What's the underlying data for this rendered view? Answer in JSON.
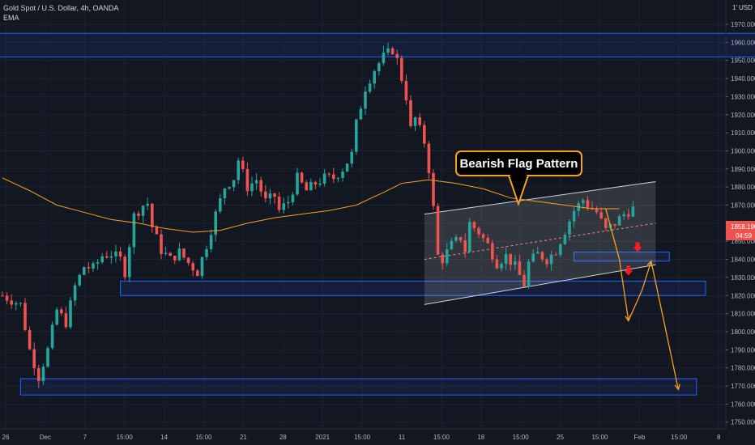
{
  "header": {
    "symbol_line": "Gold Spot / U.S. Dollar, 4h, OANDA",
    "indicator": "EMA",
    "currency": "USD"
  },
  "annotation": {
    "label": "Bearish Flag Pattern"
  },
  "price_label": {
    "price": "1858.190",
    "countdown": "04:59"
  },
  "colors": {
    "background": "#131722",
    "up": "#26a69a",
    "down": "#ef5350",
    "ema": "#f7a21b",
    "zone_border": "#2962ff",
    "arrow": "#f7a21b",
    "red_marker": "#ff1d1d"
  },
  "chart_data": {
    "type": "candlestick",
    "title": "Gold Spot / U.S. Dollar, 4h, OANDA",
    "ylim": [
      1745,
      1985
    ],
    "y_ticks": [
      1750,
      1760,
      1770,
      1780,
      1790,
      1800,
      1810,
      1820,
      1830,
      1840,
      1850,
      1860,
      1870,
      1880,
      1890,
      1900,
      1910,
      1920,
      1930,
      1940,
      1950,
      1960,
      1970
    ],
    "x_tick_labels": [
      "26",
      "Dec",
      "7",
      "15:00",
      "14",
      "15:00",
      "21",
      "28",
      "2021",
      "15:00",
      "11",
      "15:00",
      "18",
      "15:00",
      "25",
      "15:00",
      "Feb",
      "15:00",
      "8"
    ],
    "close_path": [
      [
        0,
        1820
      ],
      [
        4,
        1815
      ],
      [
        6,
        1790
      ],
      [
        8,
        1775
      ],
      [
        10,
        1790
      ],
      [
        12,
        1812
      ],
      [
        14,
        1805
      ],
      [
        16,
        1825
      ],
      [
        18,
        1836
      ],
      [
        20,
        1835
      ],
      [
        22,
        1842
      ],
      [
        24,
        1843
      ],
      [
        26,
        1840
      ],
      [
        27,
        1833
      ],
      [
        29,
        1864
      ],
      [
        31,
        1870
      ],
      [
        32,
        1871
      ],
      [
        33,
        1858
      ],
      [
        35,
        1845
      ],
      [
        37,
        1840
      ],
      [
        39,
        1844
      ],
      [
        41,
        1838
      ],
      [
        43,
        1833
      ],
      [
        45,
        1848
      ],
      [
        47,
        1865
      ],
      [
        49,
        1880
      ],
      [
        51,
        1885
      ],
      [
        52,
        1895
      ],
      [
        54,
        1880
      ],
      [
        56,
        1884
      ],
      [
        58,
        1872
      ],
      [
        60,
        1875
      ],
      [
        61,
        1867
      ],
      [
        63,
        1872
      ],
      [
        65,
        1885
      ],
      [
        67,
        1878
      ],
      [
        69,
        1882
      ],
      [
        71,
        1885
      ],
      [
        73,
        1885
      ],
      [
        75,
        1890
      ],
      [
        77,
        1898
      ],
      [
        78,
        1915
      ],
      [
        80,
        1935
      ],
      [
        82,
        1945
      ],
      [
        84,
        1952
      ],
      [
        86,
        1956
      ],
      [
        87,
        1950
      ],
      [
        89,
        1930
      ],
      [
        90,
        1912
      ],
      [
        91,
        1918
      ],
      [
        93,
        1905
      ],
      [
        94,
        1890
      ],
      [
        95,
        1868
      ],
      [
        96,
        1842
      ],
      [
        97,
        1840
      ],
      [
        99,
        1848
      ],
      [
        101,
        1852
      ],
      [
        102,
        1845
      ],
      [
        103,
        1860
      ],
      [
        105,
        1855
      ],
      [
        107,
        1848
      ],
      [
        109,
        1838
      ],
      [
        111,
        1842
      ],
      [
        113,
        1836
      ],
      [
        115,
        1826
      ],
      [
        116,
        1838
      ],
      [
        118,
        1843
      ],
      [
        120,
        1840
      ],
      [
        122,
        1845
      ],
      [
        124,
        1856
      ],
      [
        126,
        1867
      ],
      [
        128,
        1873
      ],
      [
        129,
        1870
      ],
      [
        131,
        1866
      ],
      [
        133,
        1856
      ],
      [
        135,
        1860
      ],
      [
        137,
        1865
      ],
      [
        139,
        1868
      ]
    ],
    "ema_path": [
      [
        0,
        1885
      ],
      [
        6,
        1878
      ],
      [
        12,
        1870
      ],
      [
        18,
        1866
      ],
      [
        24,
        1862
      ],
      [
        30,
        1860
      ],
      [
        36,
        1857
      ],
      [
        42,
        1855
      ],
      [
        48,
        1856
      ],
      [
        54,
        1860
      ],
      [
        60,
        1863
      ],
      [
        66,
        1865
      ],
      [
        72,
        1867
      ],
      [
        78,
        1870
      ],
      [
        84,
        1877
      ],
      [
        88,
        1882
      ],
      [
        94,
        1884
      ],
      [
        100,
        1882
      ],
      [
        106,
        1879
      ],
      [
        112,
        1874
      ],
      [
        118,
        1872
      ],
      [
        124,
        1870
      ],
      [
        130,
        1868
      ],
      [
        136,
        1868
      ]
    ],
    "zones": [
      {
        "x0": -2,
        "x1": 185,
        "y0": 1952,
        "y1": 1965
      },
      {
        "x0": 26,
        "x1": 155,
        "y0": 1820,
        "y1": 1828
      },
      {
        "x0": 4,
        "x1": 153,
        "y0": 1765,
        "y1": 1774
      },
      {
        "x0": 126,
        "x1": 147,
        "y0": 1839,
        "y1": 1844
      }
    ],
    "flag_channel": {
      "upper": [
        [
          93,
          1865
        ],
        [
          144,
          1883
        ]
      ],
      "lower": [
        [
          93,
          1815
        ],
        [
          144,
          1837
        ]
      ],
      "mid": [
        [
          93,
          1840
        ],
        [
          144,
          1860
        ]
      ]
    },
    "projection": [
      [
        133,
        1868
      ],
      [
        136,
        1840
      ],
      [
        138,
        1806
      ],
      [
        141,
        1823
      ],
      [
        143,
        1839
      ],
      [
        149,
        1768
      ]
    ],
    "markers": [
      [
        140,
        1845
      ],
      [
        138,
        1832
      ]
    ]
  }
}
